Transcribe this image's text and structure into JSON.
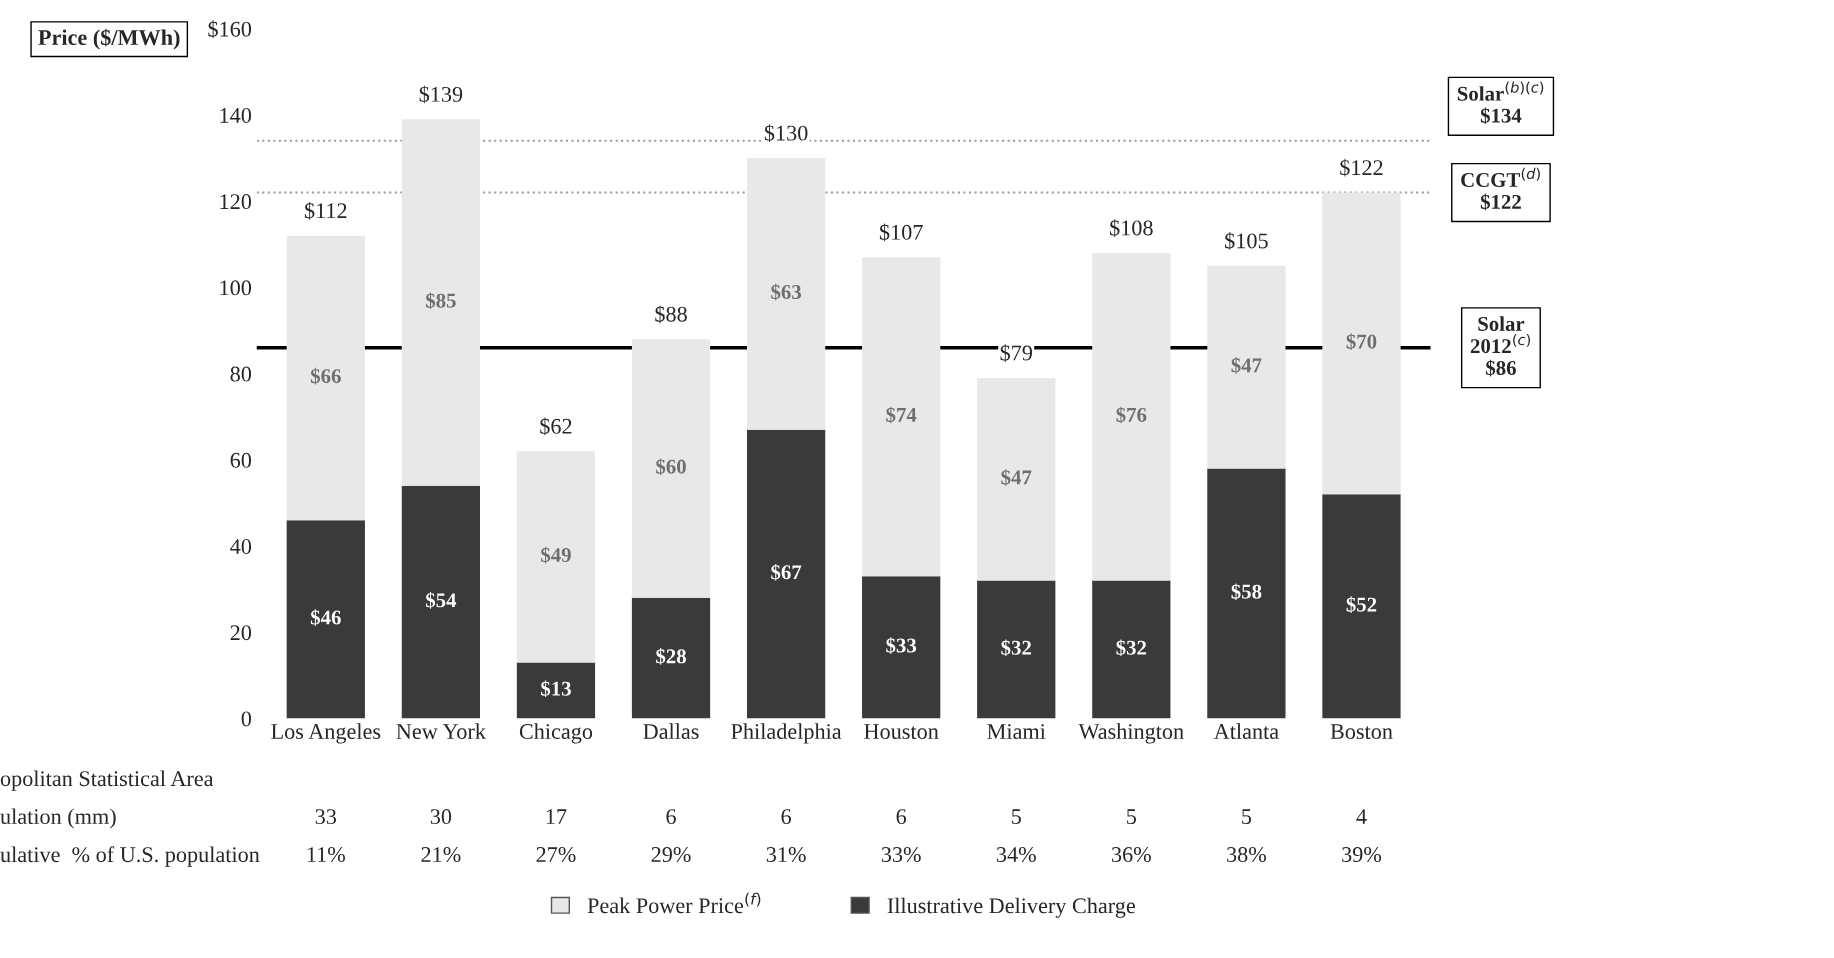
{
  "chart_data": {
    "type": "bar",
    "stacked": true,
    "categories": [
      "Los Angeles",
      "New York",
      "Chicago",
      "Dallas",
      "Philadelphia",
      "Houston",
      "Miami",
      "Washington",
      "Atlanta",
      "Boston"
    ],
    "series": [
      {
        "name": "Illustrative Delivery Charge",
        "color": "#3a3a3a",
        "values": [
          46,
          54,
          13,
          28,
          67,
          33,
          32,
          32,
          58,
          52
        ],
        "value_labels": [
          "$46",
          "$54",
          "$13",
          "$28",
          "$67",
          "$33",
          "$32",
          "$32",
          "$58",
          "$52"
        ]
      },
      {
        "name": "Peak Power Price$^{(f)}$",
        "color": "#e8e8e8",
        "values": [
          66,
          85,
          49,
          60,
          63,
          74,
          47,
          76,
          47,
          70
        ],
        "value_labels": [
          "$66",
          "$85",
          "$49",
          "$60",
          "$63",
          "$74",
          "$47",
          "$76",
          "$47",
          "$70"
        ]
      }
    ],
    "totals": [
      "$112",
      "$139",
      "$62",
      "$88",
      "$130",
      "$107",
      "$79",
      "$108",
      "$105",
      "$122"
    ],
    "ylabel": "Price ($/MWh)",
    "ylim": [
      0,
      160
    ],
    "yticks": [
      0,
      20,
      40,
      60,
      80,
      100,
      120,
      140,
      {
        "value": 160,
        "label": "$160"
      }
    ],
    "ref_lines": [
      {
        "axis": "y",
        "value": 86,
        "label": "Solar\n2012$^{(c)}$\n$86",
        "color": "#000000",
        "line_style": "solid"
      },
      {
        "axis": "y",
        "value": 122,
        "label": "CCGT$^{(d)}$\n$122",
        "color": "#999999",
        "line_style": "dotted"
      },
      {
        "axis": "y",
        "value": 134,
        "label": "Solar$^{(b)(c)}$\n$134",
        "color": "#999999",
        "line_style": "dotted"
      }
    ],
    "annotations": [
      "opolitan Statistical Area",
      "ulation (mm)",
      "ulative  % of U.S. population",
      "33",
      "11%",
      "30",
      "21%",
      "17",
      "27%",
      "6",
      "29%",
      "6",
      "31%",
      "6",
      "33%",
      "5",
      "34%",
      "5",
      "36%",
      "5",
      "38%",
      "4",
      "39%"
    ],
    "legend": "bottom",
    "grid": false
  }
}
